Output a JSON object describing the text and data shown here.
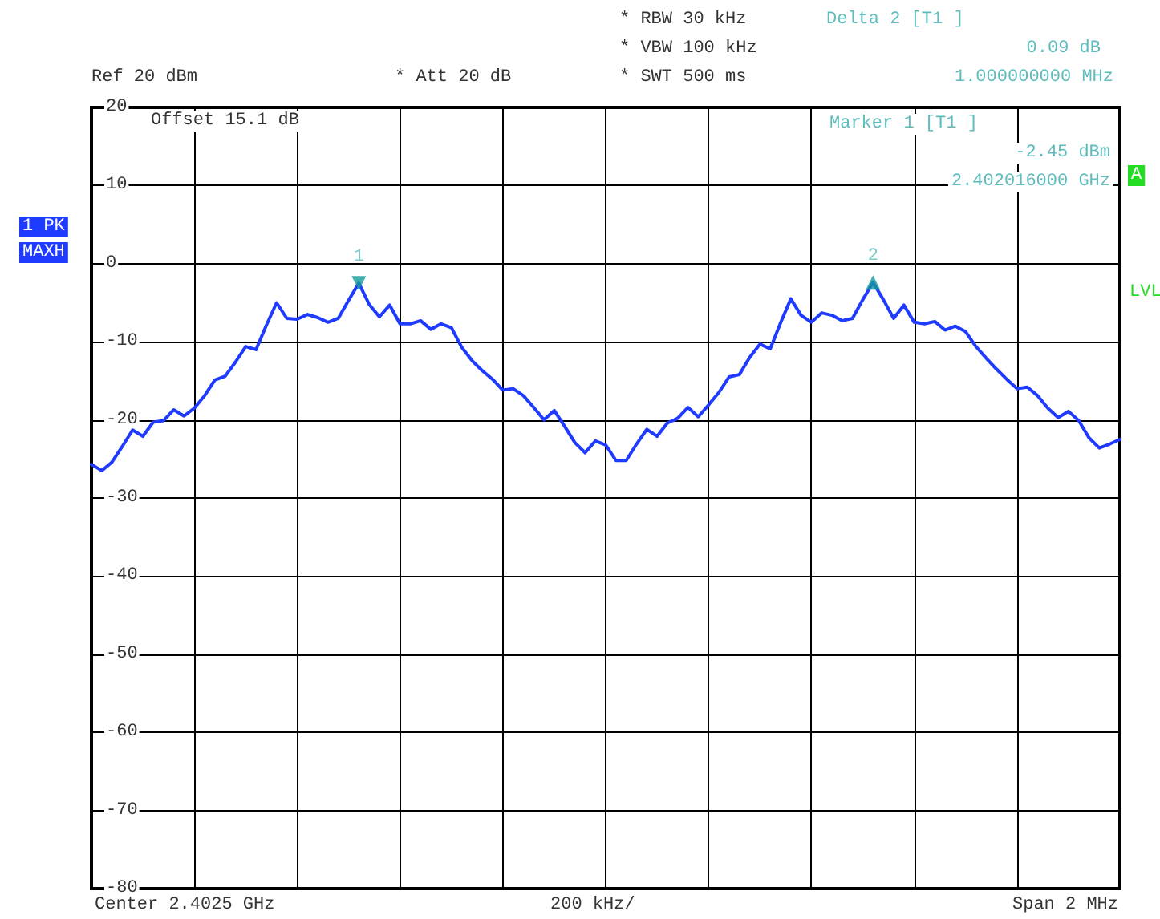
{
  "chart_data": {
    "type": "line",
    "ylim": [
      -80,
      20
    ],
    "yticks": [
      -80,
      -70,
      -60,
      -50,
      -40,
      -30,
      -20,
      -10,
      0,
      10,
      20
    ],
    "categories": [
      null,
      null,
      null,
      null,
      null,
      null,
      null,
      null,
      null,
      null,
      null,
      null,
      null,
      null,
      null,
      null,
      null,
      null,
      null,
      null,
      null,
      null,
      null,
      null,
      null,
      null,
      null,
      null,
      null,
      null,
      null,
      null,
      null,
      null,
      null,
      null,
      null,
      null,
      null,
      null,
      null,
      null,
      null,
      null,
      null,
      null,
      null,
      null,
      null,
      null,
      null,
      null,
      null,
      null,
      null,
      null,
      null,
      null,
      null,
      null,
      null,
      null,
      null,
      null,
      null,
      null,
      null,
      null,
      null,
      null,
      null,
      null,
      null,
      null,
      null,
      null,
      null,
      null,
      null,
      null,
      null,
      null,
      null,
      null,
      null,
      null,
      null,
      null,
      null,
      null,
      null,
      null,
      null,
      null,
      null,
      null,
      null,
      null,
      null,
      null,
      null
    ],
    "tick_labels": "y",
    "grid": true,
    "line_style": "solid",
    "series": [
      {
        "color": "#1f3bff",
        "values": [
          -25.7,
          -26.5,
          -25.4,
          -23.4,
          -21.3,
          -22.1,
          -20.3,
          -20.1,
          -18.7,
          -19.5,
          -18.5,
          -16.9,
          -14.9,
          -14.4,
          -12.6,
          -10.6,
          -11.0,
          -7.9,
          -5.0,
          -7.0,
          -7.1,
          -6.5,
          -6.9,
          -7.5,
          -7.0,
          -4.7,
          -2.5,
          -5.2,
          -6.8,
          -5.3,
          -7.7,
          -7.7,
          -7.3,
          -8.4,
          -7.7,
          -8.2,
          -10.7,
          -12.4,
          -13.7,
          -14.8,
          -16.2,
          -16.0,
          -16.9,
          -18.4,
          -20.0,
          -18.8,
          -20.8,
          -22.9,
          -24.2,
          -22.7,
          -23.2,
          -25.2,
          -25.2,
          -23.1,
          -21.2,
          -22.1,
          -20.4,
          -19.8,
          -18.4,
          -19.6,
          -18.1,
          -16.5,
          -14.5,
          -14.2,
          -12.0,
          -10.3,
          -10.9,
          -7.6,
          -4.5,
          -6.6,
          -7.5,
          -6.3,
          -6.6,
          -7.3,
          -7.0,
          -4.6,
          -2.4,
          -4.6,
          -7.0,
          -5.3,
          -7.5,
          -7.7,
          -7.4,
          -8.5,
          -8.0,
          -8.7,
          -10.6,
          -12.1,
          -13.5,
          -14.8,
          -16.0,
          -15.8,
          -16.9,
          -18.5,
          -19.7,
          -18.9,
          -20.1,
          -22.3,
          -23.6,
          -23.1,
          -22.5
        ],
        "marker": "none"
      },
      {
        "type": "scatter",
        "name": "1",
        "color": "#149a9a",
        "marker": "triangle",
        "values": [
          null,
          null,
          null,
          null,
          null,
          null,
          null,
          null,
          null,
          null,
          null,
          null,
          null,
          null,
          null,
          null,
          null,
          null,
          null,
          null,
          null,
          null,
          null,
          null,
          null,
          null,
          -2.5,
          null,
          null,
          null,
          null,
          null,
          null,
          null,
          null,
          null,
          null,
          null,
          null,
          null,
          null,
          null,
          null,
          null,
          null,
          null,
          null,
          null,
          null,
          null,
          null,
          null,
          null,
          null,
          null,
          null,
          null,
          null,
          null,
          null,
          null,
          null,
          null,
          null,
          null,
          null,
          null,
          null,
          null,
          null,
          null,
          null,
          null,
          null,
          null,
          null,
          null,
          null,
          null,
          null,
          null,
          null,
          null,
          null,
          null,
          null,
          null,
          null,
          null,
          null,
          null,
          null,
          null,
          null,
          null,
          null,
          null,
          null,
          null,
          null,
          null
        ]
      },
      {
        "type": "scatter",
        "name": "2",
        "color": "#149a9a",
        "marker": "triangle",
        "values": [
          null,
          null,
          null,
          null,
          null,
          null,
          null,
          null,
          null,
          null,
          null,
          null,
          null,
          null,
          null,
          null,
          null,
          null,
          null,
          null,
          null,
          null,
          null,
          null,
          null,
          null,
          null,
          null,
          null,
          null,
          null,
          null,
          null,
          null,
          null,
          null,
          null,
          null,
          null,
          null,
          null,
          null,
          null,
          null,
          null,
          null,
          null,
          null,
          null,
          null,
          null,
          null,
          null,
          null,
          null,
          null,
          null,
          null,
          null,
          null,
          null,
          null,
          null,
          null,
          null,
          null,
          null,
          null,
          null,
          null,
          null,
          null,
          null,
          null,
          null,
          null,
          -2.4,
          null,
          null,
          null,
          null,
          null,
          null,
          null,
          null,
          null,
          null,
          null,
          null,
          null,
          null,
          null,
          null,
          null,
          null,
          null,
          null,
          null,
          null,
          null,
          null
        ]
      }
    ],
    "annotations": [
      "* RBW 30 kHz",
      "Delta 2 [T1 ]",
      "* VBW 100 kHz",
      "0.09 dB",
      "Ref 20 dBm",
      "* Att 20 dB",
      "* SWT 500 ms",
      "1.000000000 MHz",
      "Offset 15.1 dB",
      "Marker 1 [T1 ]",
      "-2.45 dBm",
      "2.402016000 GHz",
      "1 PK",
      "MAXH",
      "A",
      "LVL",
      "Center 2.4025 GHz",
      "200 kHz/",
      "Span 2 MHz"
    ]
  }
}
